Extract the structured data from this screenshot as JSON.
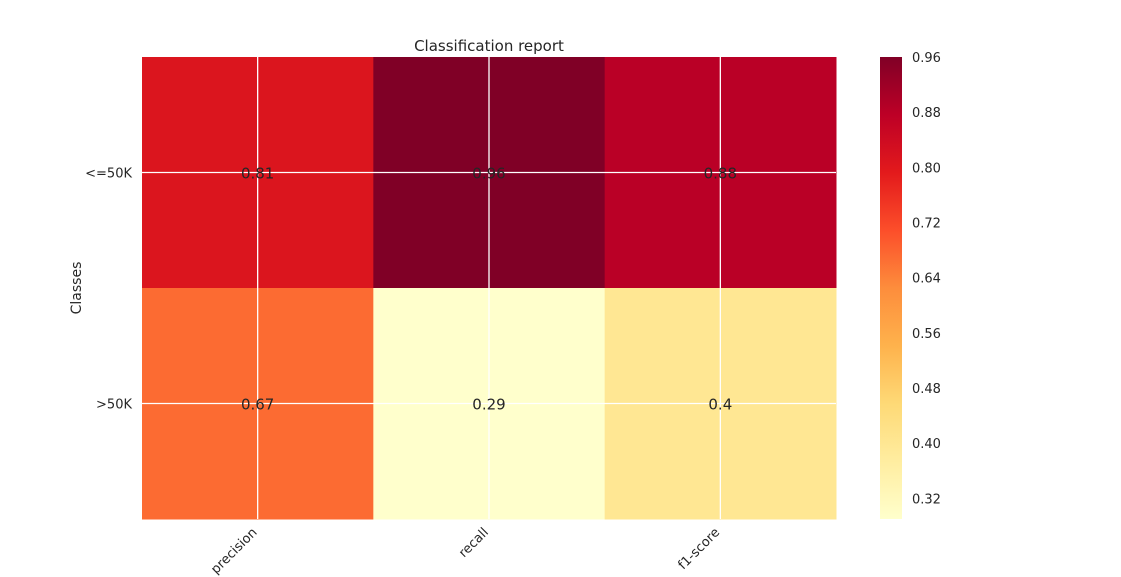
{
  "chart_data": {
    "type": "heatmap",
    "title": "Classification report",
    "xlabel": "",
    "ylabel": "Classes",
    "columns": [
      "precision",
      "recall",
      "f1-score"
    ],
    "rows": [
      "<=50K",
      ">50K"
    ],
    "values": [
      [
        0.81,
        0.96,
        0.88
      ],
      [
        0.67,
        0.29,
        0.4
      ]
    ],
    "cell_labels": [
      [
        "0.81",
        "0.96",
        "0.88"
      ],
      [
        "0.67",
        "0.29",
        "0.4"
      ]
    ],
    "colormap": "YlOrRd",
    "color_range": [
      0.29,
      0.96
    ],
    "colorbar_ticks": [
      "0.32",
      "0.40",
      "0.48",
      "0.56",
      "0.64",
      "0.72",
      "0.80",
      "0.88",
      "0.96"
    ],
    "grid": true
  }
}
